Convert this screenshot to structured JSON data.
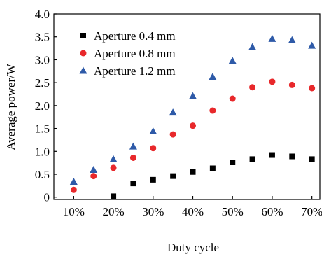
{
  "chart_data": {
    "type": "scatter",
    "title": "",
    "xlabel": "Duty cycle",
    "ylabel": "Average power/W",
    "x": [
      10,
      15,
      20,
      25,
      30,
      35,
      40,
      45,
      50,
      55,
      60,
      65,
      70
    ],
    "x_tick_labels": [
      "10%",
      "20%",
      "30%",
      "40%",
      "50%",
      "60%",
      "70%"
    ],
    "x_tick_values": [
      10,
      20,
      30,
      40,
      50,
      60,
      70
    ],
    "xlim": [
      5,
      72
    ],
    "y_tick_labels": [
      "0",
      "0.5",
      "1.0",
      "1.5",
      "2.0",
      "2.5",
      "3.0",
      "3.5",
      "4.0"
    ],
    "y_tick_values": [
      0,
      0.5,
      1.0,
      1.5,
      2.0,
      2.5,
      3.0,
      3.5,
      4.0
    ],
    "ylim": [
      -0.05,
      4.0
    ],
    "grid": false,
    "legend_position": "top-left",
    "series": [
      {
        "name": "Aperture 0.4 mm",
        "marker": "square",
        "color": "#000000",
        "values": [
          null,
          null,
          0.02,
          0.3,
          0.38,
          0.46,
          0.55,
          0.63,
          0.76,
          0.83,
          0.92,
          0.89,
          0.83
        ]
      },
      {
        "name": "Aperture 0.8 mm",
        "marker": "circle",
        "color": "#e8282b",
        "values": [
          0.16,
          0.46,
          0.64,
          0.86,
          1.07,
          1.37,
          1.56,
          1.89,
          2.15,
          2.4,
          2.52,
          2.45,
          2.38
        ]
      },
      {
        "name": "Aperture 1.2 mm",
        "marker": "triangle",
        "color": "#2e5aa8",
        "values": [
          0.34,
          0.6,
          0.83,
          1.11,
          1.44,
          1.85,
          2.21,
          2.63,
          2.98,
          3.28,
          3.46,
          3.43,
          3.31
        ]
      }
    ]
  }
}
